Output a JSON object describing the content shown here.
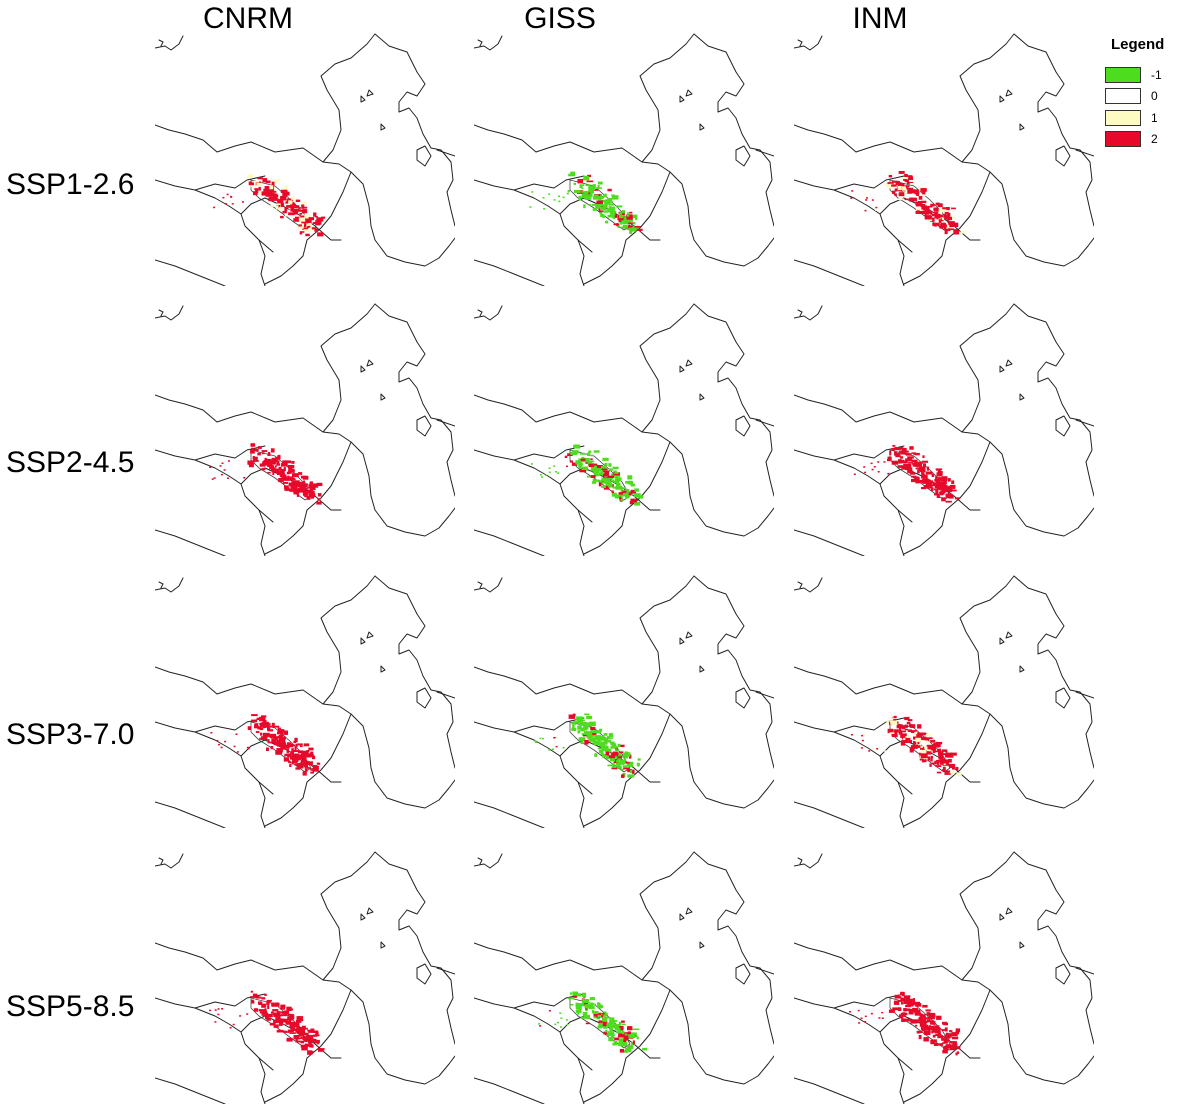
{
  "columns": [
    "CNRM",
    "GISS",
    "INM"
  ],
  "rows": [
    "SSP1-2.6",
    "SSP2-4.5",
    "SSP3-7.0",
    "SSP5-8.5"
  ],
  "legend": {
    "title": "Legend",
    "items": [
      {
        "label": "-1",
        "color": "#4ddc1e"
      },
      {
        "label": "0",
        "color": "#ffffff"
      },
      {
        "label": "1",
        "color": "#fdfbc1"
      },
      {
        "label": "2",
        "color": "#e8092a"
      }
    ]
  },
  "colors": {
    "loss": "#4ddc1e",
    "stable": "#ffffff",
    "gain": "#fdfbc1",
    "persist": "#e8092a",
    "outline": "#222222"
  },
  "panels": [
    {
      "model": "CNRM",
      "scenario": "SSP1-2.6",
      "dominant": "2",
      "mixed": "1"
    },
    {
      "model": "GISS",
      "scenario": "SSP1-2.6",
      "dominant": "-1",
      "mixed": "2"
    },
    {
      "model": "INM",
      "scenario": "SSP1-2.6",
      "dominant": "2",
      "mixed": "1"
    },
    {
      "model": "CNRM",
      "scenario": "SSP2-4.5",
      "dominant": "2",
      "mixed": "2"
    },
    {
      "model": "GISS",
      "scenario": "SSP2-4.5",
      "dominant": "-1",
      "mixed": "2"
    },
    {
      "model": "INM",
      "scenario": "SSP2-4.5",
      "dominant": "2",
      "mixed": "2"
    },
    {
      "model": "CNRM",
      "scenario": "SSP3-7.0",
      "dominant": "2",
      "mixed": "2"
    },
    {
      "model": "GISS",
      "scenario": "SSP3-7.0",
      "dominant": "-1",
      "mixed": "2"
    },
    {
      "model": "INM",
      "scenario": "SSP3-7.0",
      "dominant": "2",
      "mixed": "1"
    },
    {
      "model": "CNRM",
      "scenario": "SSP5-8.5",
      "dominant": "2",
      "mixed": "2"
    },
    {
      "model": "GISS",
      "scenario": "SSP5-8.5",
      "dominant": "-1",
      "mixed": "2"
    },
    {
      "model": "INM",
      "scenario": "SSP5-8.5",
      "dominant": "2",
      "mixed": "2"
    }
  ]
}
